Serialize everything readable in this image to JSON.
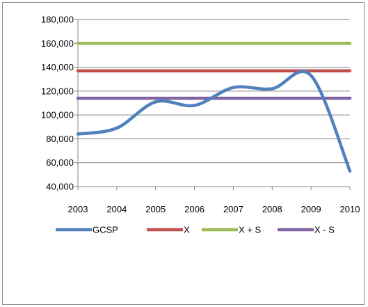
{
  "chart_data": {
    "type": "line",
    "x": [
      "2003",
      "2004",
      "2005",
      "2006",
      "2007",
      "2008",
      "2009",
      "2010"
    ],
    "ylim": [
      40000,
      180000
    ],
    "yticks": [
      40000,
      60000,
      80000,
      100000,
      120000,
      140000,
      160000,
      180000
    ],
    "ytick_labels": [
      "40,000",
      "60,000",
      "80,000",
      "100,000",
      "120,000",
      "140,000",
      "160,000",
      "180,000"
    ],
    "grid": "horizontal",
    "legend_position": "bottom",
    "series": [
      {
        "name": "GCSP",
        "color": "#4f81bd",
        "values": [
          84000,
          89000,
          111000,
          108000,
          123000,
          122000,
          133000,
          53000
        ]
      },
      {
        "name": "X",
        "color": "#c0504d",
        "values": [
          137000,
          137000,
          137000,
          137000,
          137000,
          137000,
          137000,
          137000
        ]
      },
      {
        "name": "X + S",
        "color": "#9bbb59",
        "values": [
          160000,
          160000,
          160000,
          160000,
          160000,
          160000,
          160000,
          160000
        ]
      },
      {
        "name": "X - S",
        "color": "#8064a2",
        "values": [
          114000,
          114000,
          114000,
          114000,
          114000,
          114000,
          114000,
          114000
        ]
      }
    ]
  }
}
